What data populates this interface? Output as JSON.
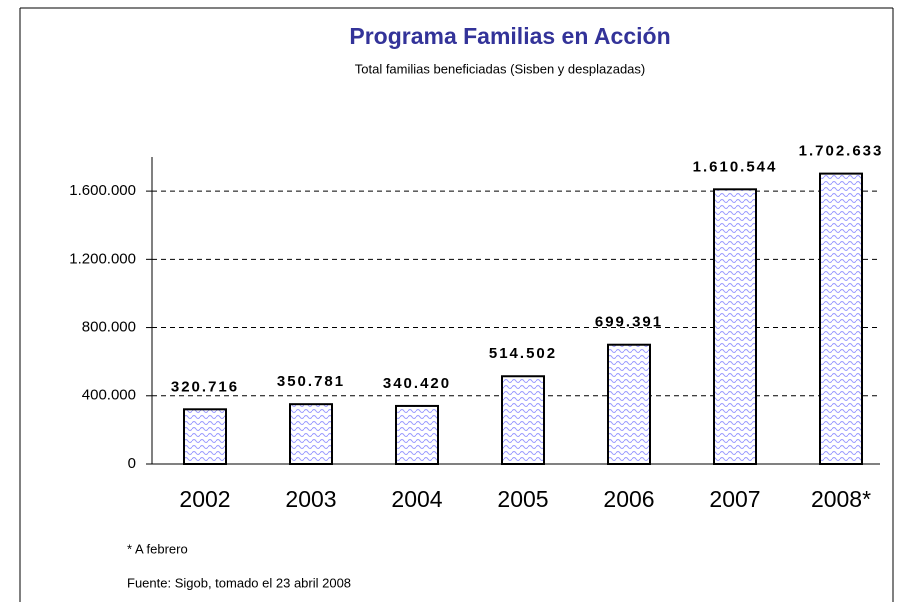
{
  "chart_data": {
    "type": "bar",
    "title": "Programa Familias en Acción",
    "subtitle": "Total familias beneficiadas (Sisben y desplazadas)",
    "categories": [
      "2002",
      "2003",
      "2004",
      "2005",
      "2006",
      "2007",
      "2008*"
    ],
    "values": [
      320716,
      350781,
      340420,
      514502,
      699391,
      1610544,
      1702633
    ],
    "value_labels": [
      "320.716",
      "350.781",
      "340.420",
      "514.502",
      "699.391",
      "1.610.544",
      "1.702.633"
    ],
    "color": "#9999ff",
    "ylim": [
      0,
      1800000
    ],
    "yticks": [
      0,
      {
        "value": 400000,
        "label": "400.000"
      },
      {
        "value": 800000,
        "label": "800.000"
      },
      {
        "value": 1200000,
        "label": "1.200.000"
      },
      {
        "value": 1600000,
        "label": "1.600.000"
      }
    ],
    "grid": true,
    "notes": [
      "* A febrero",
      "Fuente: Sigob, tomado el 23 abril 2008"
    ]
  }
}
